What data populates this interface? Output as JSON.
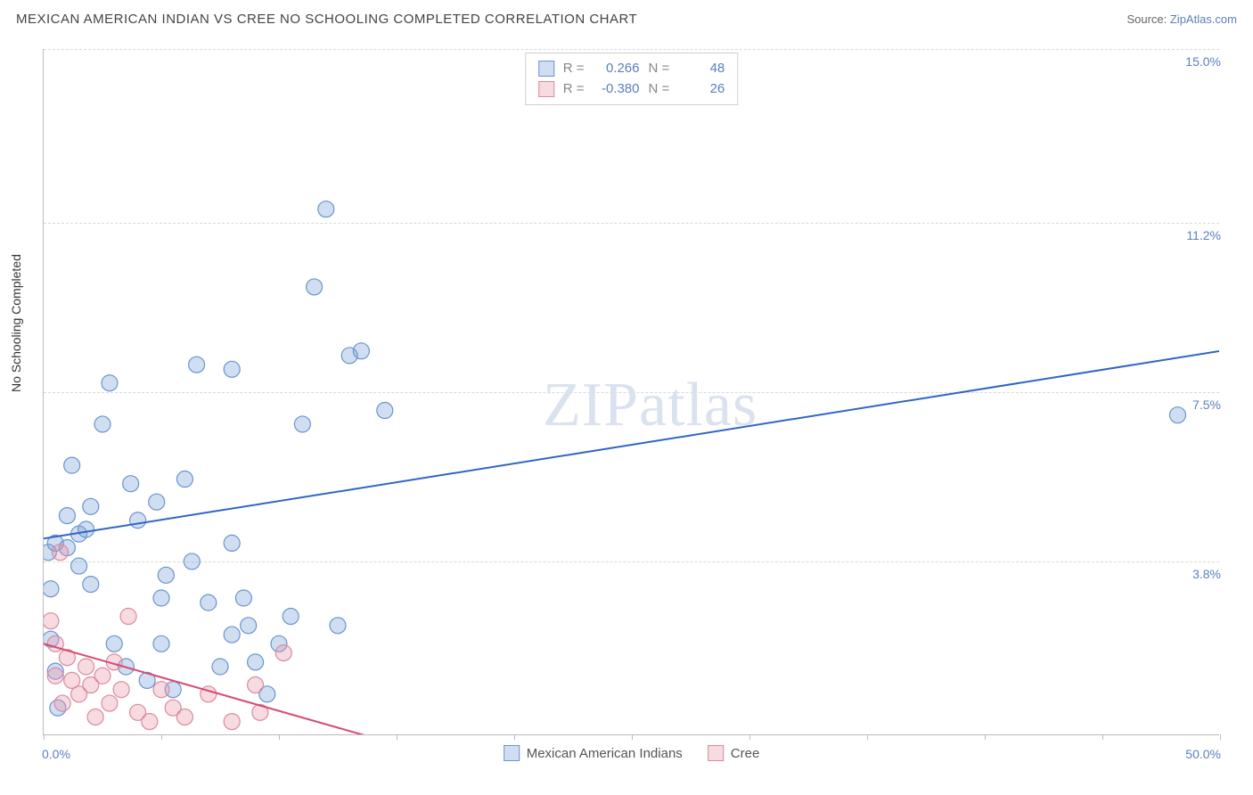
{
  "title": "MEXICAN AMERICAN INDIAN VS CREE NO SCHOOLING COMPLETED CORRELATION CHART",
  "source_prefix": "Source: ",
  "source_name": "ZipAtlas.com",
  "y_axis_label": "No Schooling Completed",
  "watermark_bold": "ZIP",
  "watermark_rest": "atlas",
  "chart": {
    "type": "scatter",
    "xlim": [
      0,
      50
    ],
    "ylim": [
      0,
      15
    ],
    "x_min_label": "0.0%",
    "x_max_label": "50.0%",
    "x_tick_step": 5,
    "y_ticks": [
      3.8,
      7.5,
      11.2,
      15.0
    ],
    "y_tick_labels": [
      "3.8%",
      "7.5%",
      "11.2%",
      "15.0%"
    ],
    "grid_color": "#d8d8d8",
    "background_color": "#ffffff",
    "axis_color": "#bbbbbb",
    "axis_label_color": "#5a7fbf",
    "point_radius": 9,
    "series": [
      {
        "name": "Mexican American Indians",
        "color_fill": "rgba(120,160,214,0.35)",
        "color_stroke": "#6a94cf",
        "trend_color": "#2f66c4",
        "R": "0.266",
        "N": "48",
        "trend": {
          "x1": 0,
          "y1": 4.3,
          "x2": 50,
          "y2": 8.4
        },
        "points": [
          [
            0.2,
            4.0
          ],
          [
            0.3,
            2.1
          ],
          [
            0.3,
            3.2
          ],
          [
            0.5,
            1.4
          ],
          [
            0.6,
            0.6
          ],
          [
            0.5,
            4.2
          ],
          [
            1.0,
            4.8
          ],
          [
            1.0,
            4.1
          ],
          [
            1.2,
            5.9
          ],
          [
            1.5,
            4.4
          ],
          [
            1.5,
            3.7
          ],
          [
            1.8,
            4.5
          ],
          [
            2.0,
            3.3
          ],
          [
            2.5,
            6.8
          ],
          [
            2.8,
            7.7
          ],
          [
            3.0,
            2.0
          ],
          [
            3.5,
            1.5
          ],
          [
            3.7,
            5.5
          ],
          [
            4.0,
            4.7
          ],
          [
            4.4,
            1.2
          ],
          [
            4.8,
            5.1
          ],
          [
            5.0,
            3.0
          ],
          [
            5.2,
            3.5
          ],
          [
            5.0,
            2.0
          ],
          [
            5.5,
            1.0
          ],
          [
            6.0,
            5.6
          ],
          [
            6.3,
            3.8
          ],
          [
            7.0,
            2.9
          ],
          [
            7.5,
            1.5
          ],
          [
            8.0,
            4.2
          ],
          [
            8.0,
            8.0
          ],
          [
            8.0,
            2.2
          ],
          [
            8.5,
            3.0
          ],
          [
            8.7,
            2.4
          ],
          [
            9.0,
            1.6
          ],
          [
            9.5,
            0.9
          ],
          [
            10.0,
            2.0
          ],
          [
            10.5,
            2.6
          ],
          [
            11.0,
            6.8
          ],
          [
            11.5,
            9.8
          ],
          [
            12.0,
            11.5
          ],
          [
            12.5,
            2.4
          ],
          [
            13.0,
            8.3
          ],
          [
            13.5,
            8.4
          ],
          [
            14.5,
            7.1
          ],
          [
            48.2,
            7.0
          ],
          [
            6.5,
            8.1
          ],
          [
            2.0,
            5.0
          ]
        ]
      },
      {
        "name": "Cree",
        "color_fill": "rgba(235,150,170,0.35)",
        "color_stroke": "#d98aa0",
        "trend_color": "#d84a6f",
        "R": "-0.380",
        "N": "26",
        "trend": {
          "x1": 0,
          "y1": 2.0,
          "x2": 15,
          "y2": -0.2
        },
        "points": [
          [
            0.3,
            2.5
          ],
          [
            0.5,
            2.0
          ],
          [
            0.5,
            1.3
          ],
          [
            0.7,
            4.0
          ],
          [
            0.8,
            0.7
          ],
          [
            1.0,
            1.7
          ],
          [
            1.2,
            1.2
          ],
          [
            1.5,
            0.9
          ],
          [
            1.8,
            1.5
          ],
          [
            2.0,
            1.1
          ],
          [
            2.2,
            0.4
          ],
          [
            2.5,
            1.3
          ],
          [
            2.8,
            0.7
          ],
          [
            3.0,
            1.6
          ],
          [
            3.3,
            1.0
          ],
          [
            3.6,
            2.6
          ],
          [
            4.0,
            0.5
          ],
          [
            4.5,
            0.3
          ],
          [
            5.0,
            1.0
          ],
          [
            5.5,
            0.6
          ],
          [
            6.0,
            0.4
          ],
          [
            7.0,
            0.9
          ],
          [
            8.0,
            0.3
          ],
          [
            9.0,
            1.1
          ],
          [
            10.2,
            1.8
          ],
          [
            9.2,
            0.5
          ]
        ]
      }
    ],
    "legend_top": {
      "r_label": "R =",
      "n_label": "N ="
    },
    "legend_bottom_labels": [
      "Mexican American Indians",
      "Cree"
    ]
  }
}
